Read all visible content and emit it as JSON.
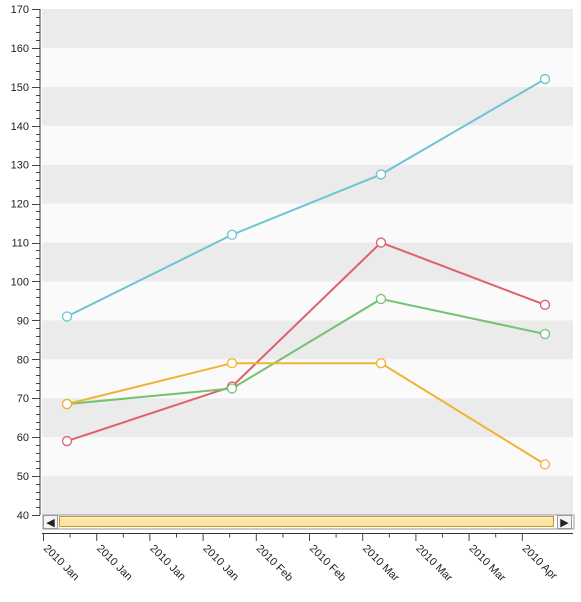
{
  "chart_data": {
    "type": "line",
    "title": "",
    "xlabel": "",
    "ylabel": "",
    "ylim": [
      40,
      170
    ],
    "y_ticks": [
      40,
      50,
      60,
      70,
      80,
      90,
      100,
      110,
      120,
      130,
      140,
      150,
      160,
      170
    ],
    "x_tick_labels": [
      "2010 Jan",
      "2010 Jan",
      "2010 Jan",
      "2010 Jan",
      "2010 Feb",
      "2010 Feb",
      "2010 Mar",
      "2010 Mar",
      "2010 Mar",
      "2010 Apr"
    ],
    "grid": "alternating horizontal bands",
    "legend": "none",
    "x": [
      "2010-01-01",
      "2010-02-01",
      "2010-03-01",
      "2010-04-01"
    ],
    "series": [
      {
        "values": [
          91,
          112,
          127.5,
          152
        ],
        "color": "#6cc4d4"
      },
      {
        "values": [
          59,
          73,
          110,
          94
        ],
        "color": "#e0606a"
      },
      {
        "values": [
          68.5,
          72.5,
          95.5,
          86.5
        ],
        "color": "#74c274"
      },
      {
        "values": [
          68.5,
          79,
          79,
          53
        ],
        "color": "#f0b432"
      }
    ]
  },
  "scrollbar": {
    "left_arrow": "◀",
    "right_arrow": "▶"
  },
  "colors": {
    "band_dark": "#ebebeb",
    "band_light": "#fafafa",
    "scroll_thumb": "#fbe3a6",
    "scroll_thumb_border": "#c89a2a"
  }
}
